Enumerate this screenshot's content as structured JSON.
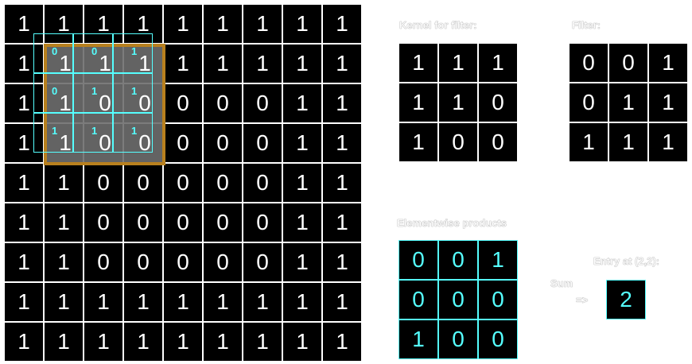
{
  "input_grid": [
    [
      1,
      1,
      1,
      1,
      1,
      1,
      1,
      1,
      1
    ],
    [
      1,
      1,
      1,
      1,
      1,
      1,
      1,
      1,
      1
    ],
    [
      1,
      1,
      0,
      0,
      0,
      0,
      0,
      1,
      1
    ],
    [
      1,
      1,
      0,
      0,
      0,
      0,
      0,
      1,
      1
    ],
    [
      1,
      1,
      0,
      0,
      0,
      0,
      0,
      1,
      1
    ],
    [
      1,
      1,
      0,
      0,
      0,
      0,
      0,
      1,
      1
    ],
    [
      1,
      1,
      0,
      0,
      0,
      0,
      0,
      1,
      1
    ],
    [
      1,
      1,
      1,
      1,
      1,
      1,
      1,
      1,
      1
    ],
    [
      1,
      1,
      1,
      1,
      1,
      1,
      1,
      1,
      1
    ]
  ],
  "highlight": {
    "row_start": 1,
    "col_start": 1,
    "size": 3,
    "border_color": "#b8801e"
  },
  "labels": {
    "kernel": "Kernel for filter:",
    "filter": "Filter:",
    "products": "Elementwise products",
    "entry": "Entry at (2,2):",
    "sum": "Sum",
    "arrow": "=>"
  },
  "kernel": [
    [
      1,
      1,
      1
    ],
    [
      1,
      1,
      0
    ],
    [
      1,
      0,
      0
    ]
  ],
  "filter": [
    [
      0,
      0,
      1
    ],
    [
      0,
      1,
      1
    ],
    [
      1,
      1,
      1
    ]
  ],
  "products": [
    [
      0,
      0,
      1
    ],
    [
      0,
      0,
      0
    ],
    [
      1,
      0,
      0
    ]
  ],
  "entry_value": "2",
  "colors": {
    "accent": "#55ffff",
    "cell_bg": "#000000",
    "highlight_fill": "#6e6e6e"
  }
}
